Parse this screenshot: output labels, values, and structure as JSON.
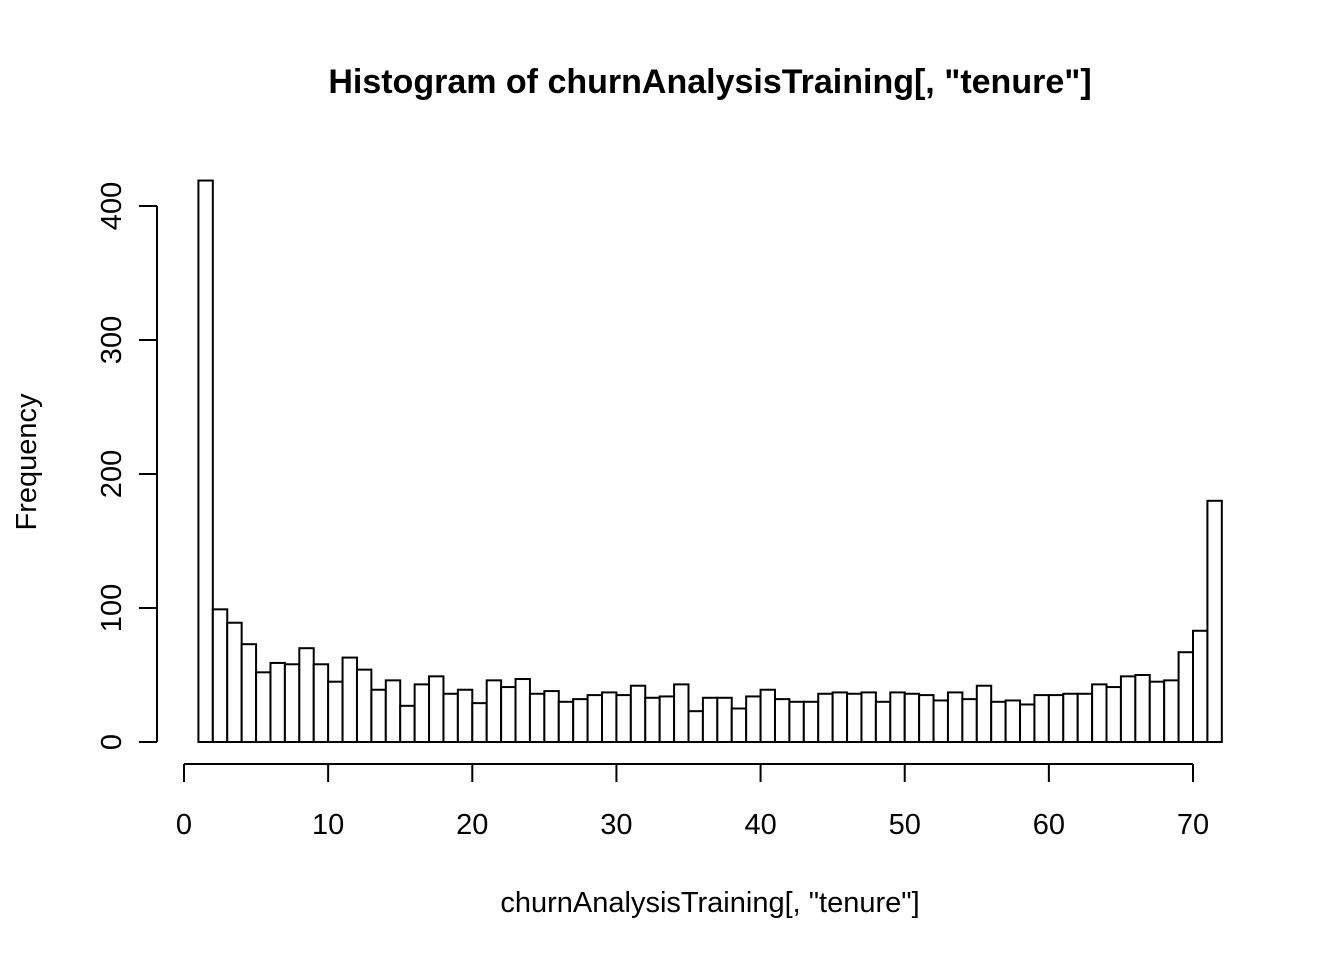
{
  "chart_data": {
    "type": "bar",
    "title": "Histogram of churnAnalysisTraining[, \"tenure\"]",
    "xlabel": "churnAnalysisTraining[, \"tenure\"]",
    "ylabel": "Frequency",
    "bin_width": 1,
    "bin_start": 1,
    "values": [
      419,
      99,
      89,
      73,
      52,
      59,
      58,
      70,
      58,
      45,
      63,
      54,
      39,
      46,
      27,
      43,
      49,
      36,
      39,
      29,
      46,
      41,
      47,
      36,
      38,
      30,
      32,
      35,
      37,
      35,
      42,
      33,
      34,
      43,
      23,
      33,
      33,
      25,
      34,
      39,
      32,
      30,
      30,
      36,
      37,
      36,
      37,
      30,
      37,
      36,
      35,
      31,
      37,
      32,
      42,
      30,
      31,
      28,
      35,
      35,
      36,
      36,
      43,
      41,
      49,
      50,
      45,
      46,
      67,
      83,
      180
    ],
    "xlim": [
      0,
      72
    ],
    "ylim": [
      0,
      420
    ],
    "x_ticks": [
      0,
      10,
      20,
      30,
      40,
      50,
      60,
      70
    ],
    "y_ticks": [
      0,
      100,
      200,
      300,
      400
    ],
    "grid": false,
    "legend": "none"
  }
}
